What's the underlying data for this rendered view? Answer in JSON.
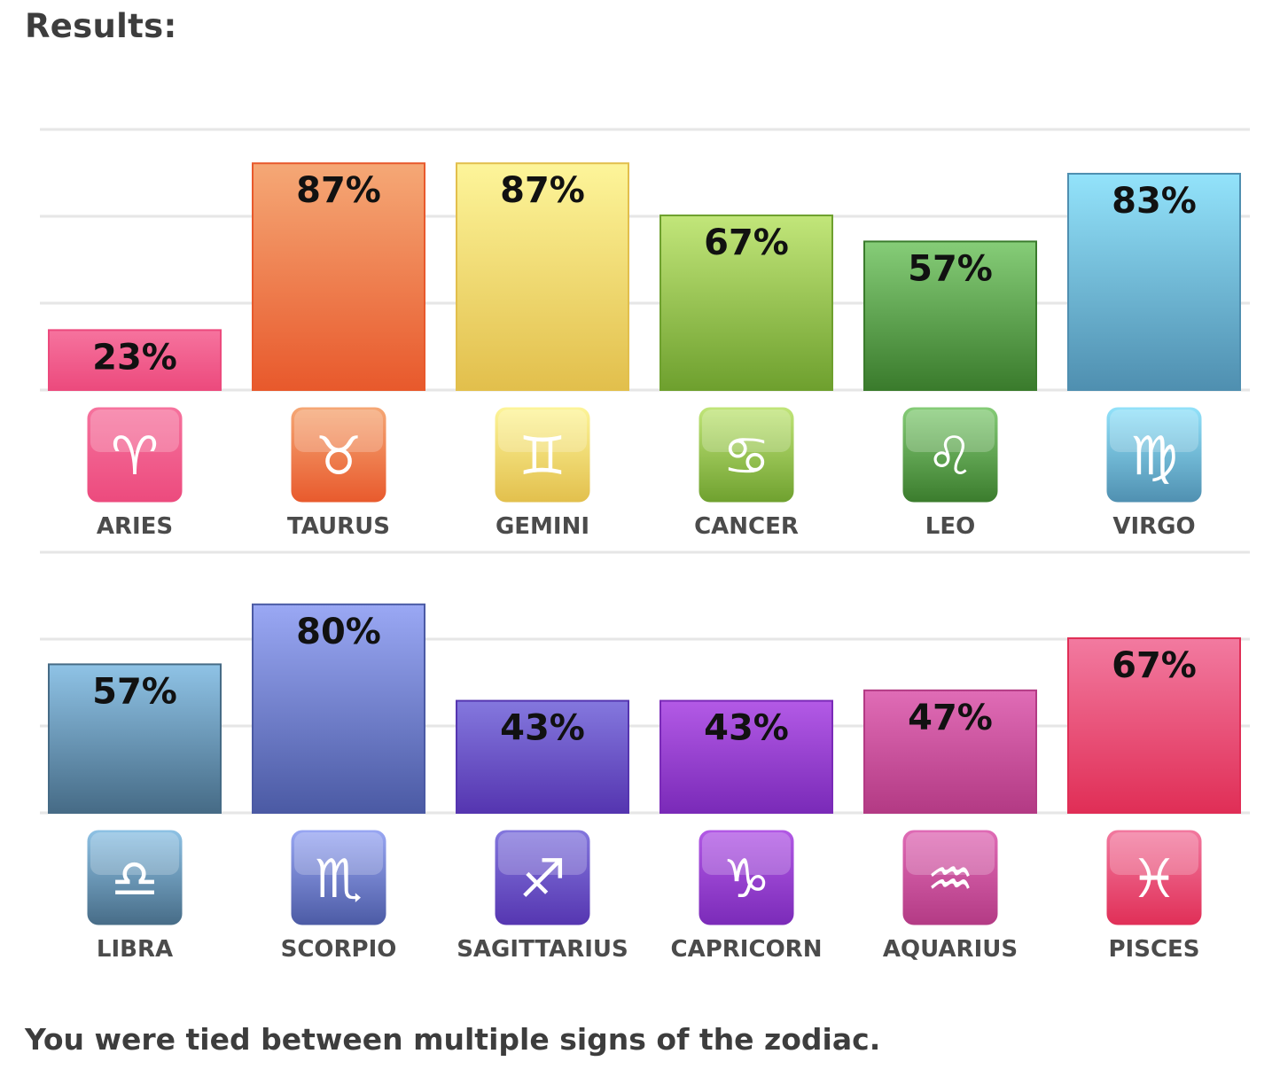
{
  "heading": "Results:",
  "footer": "You were tied between multiple signs of the zodiac.",
  "chart_data": [
    {
      "type": "bar",
      "categories": [
        "ARIES",
        "TAURUS",
        "GEMINI",
        "CANCER",
        "LEO",
        "VIRGO"
      ],
      "values": [
        23,
        87,
        87,
        67,
        57,
        83
      ],
      "value_labels": [
        "23%",
        "87%",
        "87%",
        "67%",
        "57%",
        "83%"
      ],
      "icons": [
        "aries-icon",
        "taurus-icon",
        "gemini-icon",
        "cancer-icon",
        "leo-icon",
        "virgo-icon"
      ],
      "colors": [
        [
          "#f6739e",
          "#ec4a7d"
        ],
        [
          "#f5a876",
          "#e8592c"
        ],
        [
          "#fdf59a",
          "#e2bf4c"
        ],
        [
          "#c2e67a",
          "#6ea02e"
        ],
        [
          "#86cd78",
          "#3a7b2c"
        ],
        [
          "#93e3fb",
          "#4f8fb0"
        ]
      ],
      "ylim": [
        0,
        100
      ],
      "grid": true
    },
    {
      "type": "bar",
      "categories": [
        "LIBRA",
        "SCORPIO",
        "SAGITTARIUS",
        "CAPRICORN",
        "AQUARIUS",
        "PISCES"
      ],
      "values": [
        57,
        80,
        43,
        43,
        47,
        67
      ],
      "value_labels": [
        "57%",
        "80%",
        "43%",
        "43%",
        "47%",
        "67%"
      ],
      "icons": [
        "libra-icon",
        "scorpio-icon",
        "sagittarius-icon",
        "capricorn-icon",
        "aquarius-icon",
        "pisces-icon"
      ],
      "colors": [
        [
          "#8fc3e6",
          "#466b86"
        ],
        [
          "#9aa8f4",
          "#4b5aa4"
        ],
        [
          "#8478de",
          "#5535b0"
        ],
        [
          "#b35ae6",
          "#7a2ab8"
        ],
        [
          "#e06cb6",
          "#b33a84"
        ],
        [
          "#f27aa0",
          "#e02e56"
        ]
      ],
      "ylim": [
        0,
        100
      ],
      "grid": true
    }
  ]
}
